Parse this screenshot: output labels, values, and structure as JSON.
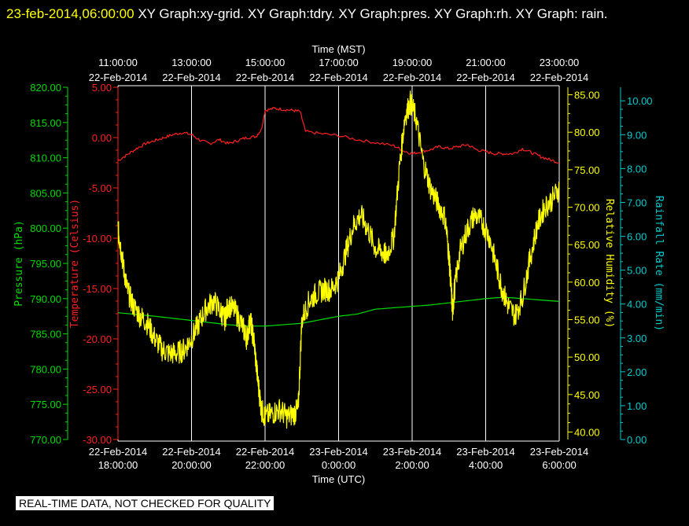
{
  "header": {
    "timestamp": "23-feb-2014,06:00:00",
    "titles": "XY Graph:xy-grid.  XY Graph:tdry.  XY Graph:pres.  XY Graph:rh.  XY Graph: rain."
  },
  "footer_note": "REAL-TIME DATA, NOT CHECKED FOR QUALITY",
  "colors": {
    "background": "#000000",
    "pressure": "#00dd00",
    "temperature": "#ff2020",
    "humidity": "#ffff00",
    "rain": "#00cccc",
    "grid": "#ffffff"
  },
  "chart_data": {
    "type": "line",
    "grid": true,
    "x_top": {
      "label": "Time (MST)",
      "ticks": [
        {
          "time": "11:00:00",
          "date": "22-Feb-2014"
        },
        {
          "time": "13:00:00",
          "date": "22-Feb-2014"
        },
        {
          "time": "15:00:00",
          "date": "22-Feb-2014"
        },
        {
          "time": "17:00:00",
          "date": "22-Feb-2014"
        },
        {
          "time": "19:00:00",
          "date": "22-Feb-2014"
        },
        {
          "time": "21:00:00",
          "date": "22-Feb-2014"
        },
        {
          "time": "23:00:00",
          "date": "22-Feb-2014"
        }
      ]
    },
    "x_bottom": {
      "label": "Time (UTC)",
      "range_hours": [
        0,
        12
      ],
      "ticks": [
        {
          "date": "22-Feb-2014",
          "time": "18:00:00"
        },
        {
          "date": "22-Feb-2014",
          "time": "20:00:00"
        },
        {
          "date": "22-Feb-2014",
          "time": "22:00:00"
        },
        {
          "date": "23-Feb-2014",
          "time": "0:00:00"
        },
        {
          "date": "23-Feb-2014",
          "time": "2:00:00"
        },
        {
          "date": "23-Feb-2014",
          "time": "4:00:00"
        },
        {
          "date": "23-Feb-2014",
          "time": "6:00:00"
        }
      ]
    },
    "axes": {
      "pressure": {
        "label": "Pressure (hPa)",
        "range": [
          770,
          820
        ],
        "ticks": [
          "820.00",
          "815.00",
          "810.00",
          "805.00",
          "800.00",
          "795.00",
          "790.00",
          "785.00",
          "780.00",
          "775.00",
          "770.00"
        ]
      },
      "temperature": {
        "label": "Temperature (Celsius)",
        "range": [
          -30,
          5
        ],
        "ticks": [
          "5.00",
          "0.00",
          "-5.00",
          "-10.00",
          "-15.00",
          "-20.00",
          "-25.00",
          "-30.00"
        ]
      },
      "humidity": {
        "label": "Relative Humidity (%)",
        "range": [
          39,
          86
        ],
        "ticks": [
          "85.00",
          "80.00",
          "75.00",
          "70.00",
          "65.00",
          "60.00",
          "55.00",
          "50.00",
          "45.00",
          "40.00"
        ]
      },
      "rain": {
        "label": "Rainfall Rate (mm/min)",
        "range": [
          0,
          10.4
        ],
        "ticks": [
          "10.00",
          "9.00",
          "8.00",
          "7.00",
          "6.00",
          "5.00",
          "4.00",
          "3.00",
          "2.00",
          "1.00",
          "0.00"
        ]
      }
    },
    "series": [
      {
        "key": "temperature",
        "x": [
          0,
          0.25,
          0.5,
          0.75,
          1.0,
          1.25,
          1.5,
          1.75,
          2.0,
          2.25,
          2.5,
          2.75,
          3.0,
          3.25,
          3.5,
          3.75,
          3.9,
          4.0,
          4.25,
          4.5,
          4.75,
          4.95,
          5.1,
          5.5,
          6.0,
          6.5,
          7.0,
          7.5,
          7.75,
          8.0,
          8.25,
          8.5,
          8.75,
          9.0,
          9.25,
          9.5,
          9.75,
          10.0,
          10.25,
          10.5,
          10.75,
          11.0,
          11.25,
          11.5,
          11.75,
          12.0
        ],
        "y": [
          -2.3,
          -1.7,
          -1.1,
          -0.6,
          -0.3,
          0.0,
          0.3,
          0.5,
          0.3,
          -0.3,
          -0.6,
          -0.2,
          -0.6,
          -0.3,
          0.0,
          0.1,
          0.8,
          2.7,
          2.9,
          2.8,
          2.7,
          2.6,
          0.6,
          0.4,
          0.2,
          -0.2,
          -0.5,
          -0.8,
          -1.3,
          -1.6,
          -1.4,
          -1.2,
          -0.9,
          -1.1,
          -0.9,
          -0.7,
          -1.2,
          -1.4,
          -1.6,
          -1.6,
          -1.6,
          -1.1,
          -1.5,
          -1.9,
          -2.2,
          -2.5
        ]
      },
      {
        "key": "pressure",
        "x": [
          0,
          1,
          2,
          3,
          3.5,
          4,
          4.5,
          5,
          5.5,
          6,
          6.5,
          7,
          7.5,
          8,
          8.5,
          9,
          9.5,
          10,
          10.5,
          11,
          12
        ],
        "y": [
          788.0,
          787.5,
          786.9,
          786.3,
          786.1,
          786.1,
          786.3,
          786.5,
          787.0,
          787.5,
          787.8,
          788.5,
          788.7,
          788.9,
          789.1,
          789.4,
          789.7,
          790.0,
          790.2,
          790.0,
          789.6
        ]
      },
      {
        "key": "humidity",
        "x": [
          0,
          0.05,
          0.15,
          0.25,
          0.4,
          0.6,
          0.8,
          1.0,
          1.2,
          1.4,
          1.6,
          1.8,
          2.0,
          2.2,
          2.4,
          2.6,
          2.8,
          2.9,
          3.0,
          3.2,
          3.4,
          3.5,
          3.6,
          3.7,
          3.8,
          3.9,
          4.0,
          4.2,
          4.4,
          4.6,
          4.8,
          4.9,
          5.0,
          5.2,
          5.4,
          5.6,
          5.8,
          6.0,
          6.2,
          6.4,
          6.6,
          6.8,
          7.0,
          7.2,
          7.3,
          7.5,
          7.65,
          7.8,
          7.95,
          8.1,
          8.3,
          8.5,
          8.7,
          8.9,
          9.0,
          9.05,
          9.1,
          9.15,
          9.3,
          9.5,
          9.7,
          9.9,
          10.1,
          10.3,
          10.45,
          10.6,
          10.8,
          11.0,
          11.2,
          11.4,
          11.6,
          11.8,
          12.0
        ],
        "y": [
          67.0,
          65.5,
          62.0,
          59.0,
          57.0,
          55.5,
          54.5,
          52.5,
          51.0,
          50.5,
          50.5,
          51.0,
          52.5,
          54.5,
          56.5,
          57.5,
          56.0,
          55.0,
          57.0,
          56.0,
          54.0,
          52.5,
          55.0,
          52.0,
          47.0,
          43.0,
          42.0,
          42.5,
          43.0,
          42.0,
          42.5,
          43.0,
          55.0,
          57.5,
          58.5,
          59.0,
          59.0,
          60.5,
          64.0,
          67.5,
          69.0,
          67.0,
          64.5,
          64.0,
          63.5,
          66.0,
          75.0,
          82.0,
          84.0,
          82.0,
          76.0,
          72.5,
          70.5,
          68.5,
          63.5,
          60.0,
          56.0,
          59.0,
          64.0,
          67.0,
          69.0,
          68.0,
          66.0,
          62.0,
          59.0,
          57.0,
          55.5,
          58.0,
          63.0,
          67.5,
          70.0,
          71.0,
          72.5
        ]
      },
      {
        "key": "rain",
        "x": [
          0,
          12
        ],
        "y": [
          0,
          0
        ]
      }
    ]
  }
}
